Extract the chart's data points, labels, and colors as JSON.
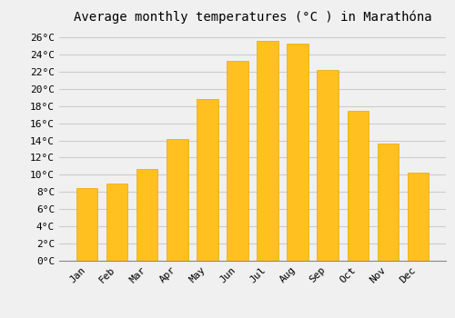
{
  "title": "Average monthly temperatures (°C ) in Marathóna",
  "months": [
    "Jan",
    "Feb",
    "Mar",
    "Apr",
    "May",
    "Jun",
    "Jul",
    "Aug",
    "Sep",
    "Oct",
    "Nov",
    "Dec"
  ],
  "values": [
    8.5,
    9.0,
    10.7,
    14.2,
    18.8,
    23.2,
    25.6,
    25.3,
    22.2,
    17.4,
    13.6,
    10.3
  ],
  "bar_color": "#FFC020",
  "bar_edge_color": "#E8A800",
  "background_color": "#F0F0F0",
  "grid_color": "#CCCCCC",
  "ylim": [
    0,
    27
  ],
  "ytick_step": 2,
  "title_fontsize": 10,
  "tick_fontsize": 8,
  "font_family": "monospace",
  "bar_width": 0.7
}
